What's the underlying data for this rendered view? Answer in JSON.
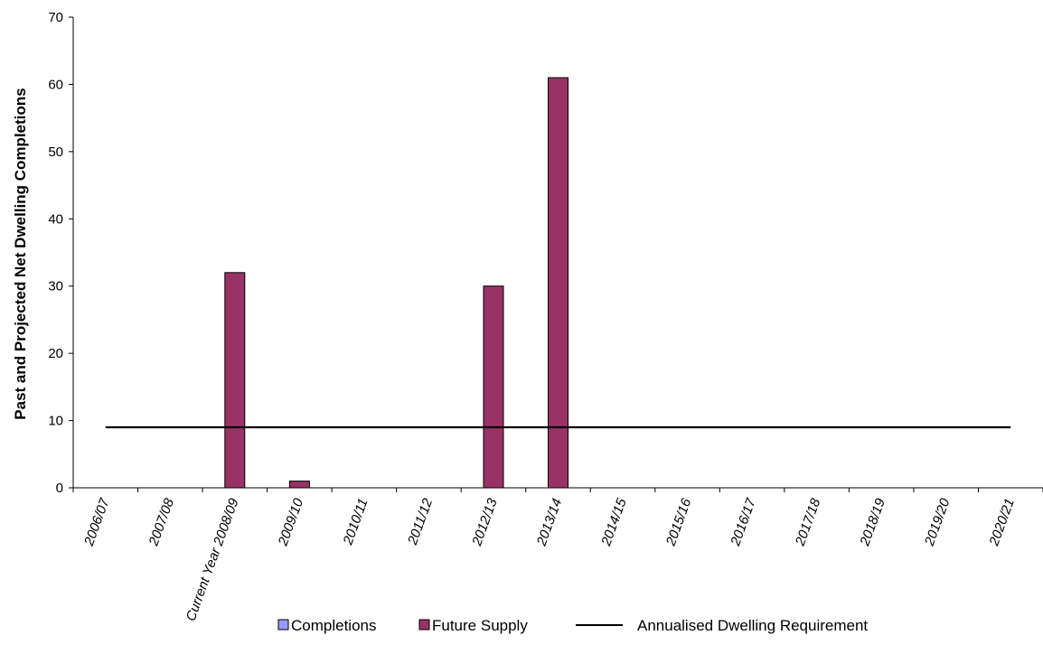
{
  "chart_data": {
    "type": "bar",
    "title": "",
    "xlabel": "",
    "ylabel": "Past and Projected Net Dwelling Completions",
    "ylim": [
      0,
      70
    ],
    "yticks": [
      0,
      10,
      20,
      30,
      40,
      50,
      60,
      70
    ],
    "categories": [
      "2006/07",
      "2007/08",
      "Current Year 2008/09",
      "2009/10",
      "2010/11",
      "2011/12",
      "2012/13",
      "2013/14",
      "2014/15",
      "2015/16",
      "2016/17",
      "2017/18",
      "2018/19",
      "2019/20",
      "2020/21"
    ],
    "series": [
      {
        "name": "Completions",
        "kind": "bar",
        "color": "#9999ff",
        "values": [
          0,
          0,
          0,
          0,
          0,
          0,
          0,
          0,
          0,
          0,
          0,
          0,
          0,
          0,
          0
        ]
      },
      {
        "name": "Future Supply",
        "kind": "bar",
        "color": "#993366",
        "values": [
          0,
          0,
          32,
          1,
          0,
          0,
          30,
          61,
          0,
          0,
          0,
          0,
          0,
          0,
          0
        ]
      },
      {
        "name": "Annualised Dwelling Requirement",
        "kind": "line",
        "color": "#000000",
        "values": [
          9,
          9,
          9,
          9,
          9,
          9,
          9,
          9,
          9,
          9,
          9,
          9,
          9,
          9,
          9
        ]
      }
    ],
    "grid": false,
    "legend_position": "bottom"
  }
}
